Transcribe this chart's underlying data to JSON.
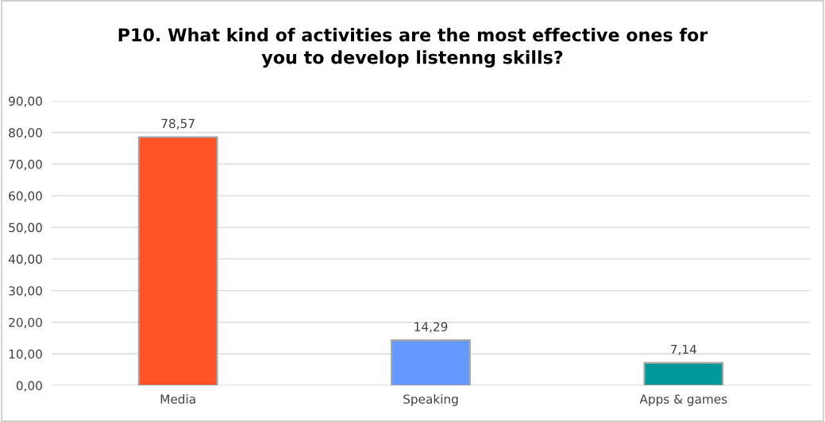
{
  "chart_data": {
    "type": "bar",
    "title": "P10. What kind of activities are the most effective ones for\nyou to develop listenng skills?",
    "categories": [
      "Media",
      "Speaking",
      "Apps & games"
    ],
    "values": [
      78.57,
      14.29,
      7.14
    ],
    "colors": [
      "#ff5328",
      "#6699ff",
      "#009999"
    ],
    "value_labels": [
      "78,57",
      "14,29",
      "7,14"
    ],
    "ylim": [
      0,
      90
    ],
    "yticks": [
      {
        "value": 0,
        "label": "0,00"
      },
      {
        "value": 10,
        "label": "10,00"
      },
      {
        "value": 20,
        "label": "20,00"
      },
      {
        "value": 30,
        "label": "30,00"
      },
      {
        "value": 40,
        "label": "40,00"
      },
      {
        "value": 50,
        "label": "50,00"
      },
      {
        "value": 60,
        "label": "60,00"
      },
      {
        "value": 70,
        "label": "70,00"
      },
      {
        "value": 80,
        "label": "80,00"
      },
      {
        "value": 90,
        "label": "90,00"
      }
    ],
    "grid": "y",
    "legend": false
  }
}
